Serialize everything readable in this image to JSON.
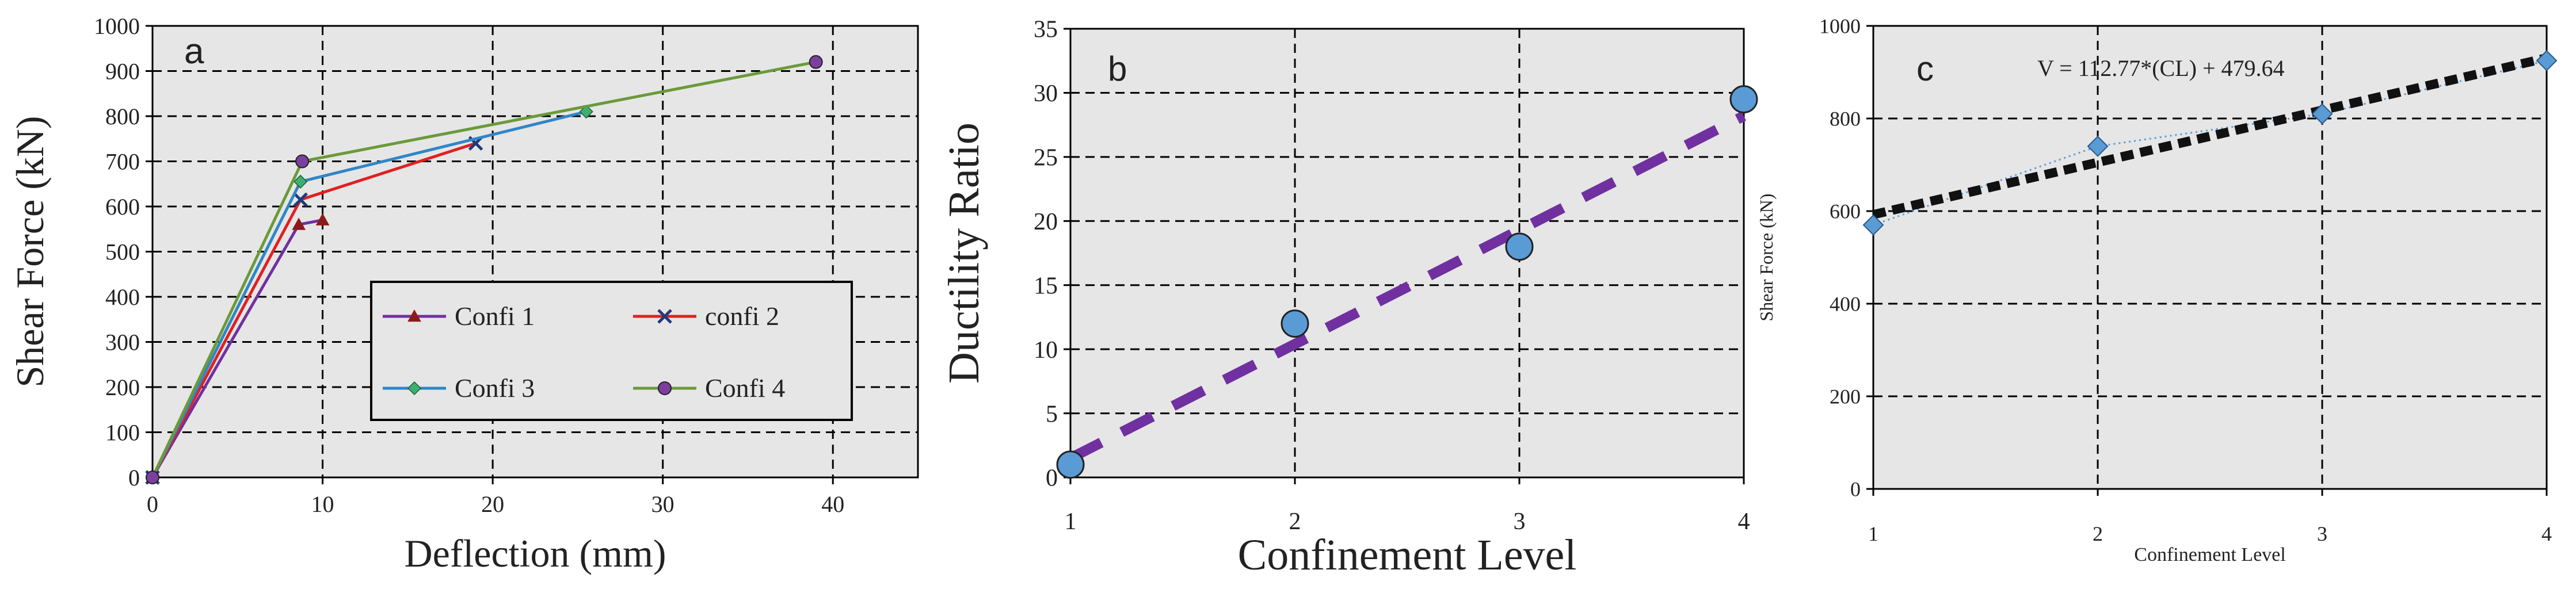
{
  "chart_data": [
    {
      "type": "line",
      "panel_label": "a",
      "xlabel": "Deflection (mm)",
      "ylabel": "Shear Force  (kN)",
      "xlim": [
        0,
        45
      ],
      "ylim": [
        0,
        1000
      ],
      "x_ticks": [
        "0",
        "10",
        "20",
        "30",
        "40"
      ],
      "y_ticks": [
        "0",
        "100",
        "200",
        "300",
        "400",
        "500",
        "600",
        "700",
        "800",
        "900",
        "1000"
      ],
      "grid": true,
      "legend_position": "bottom-right",
      "series": [
        {
          "name": "Confi 1",
          "color": "#7030A0",
          "marker_color": "#8B1A1A",
          "marker": "triangle",
          "x": [
            0,
            8.6,
            10.0
          ],
          "y": [
            0,
            560,
            570
          ]
        },
        {
          "name": "confi 2",
          "color": "#E02020",
          "marker_color": "#1F3A7A",
          "marker": "x",
          "x": [
            0,
            8.7,
            19.0
          ],
          "y": [
            0,
            615,
            740
          ]
        },
        {
          "name": "Confi 3",
          "color": "#2E86C8",
          "marker_color": "#3FAF6F",
          "marker": "diamond",
          "x": [
            0,
            8.7,
            25.5
          ],
          "y": [
            0,
            655,
            810
          ]
        },
        {
          "name": "Confi 4",
          "color": "#6A9A3A",
          "marker_color": "#7B3F9E",
          "marker": "circle",
          "x": [
            0,
            8.8,
            39.0
          ],
          "y": [
            0,
            700,
            920
          ]
        }
      ]
    },
    {
      "type": "scatter",
      "panel_label": "b",
      "xlabel": "Confinement Level",
      "ylabel": "Ductility Ratio",
      "xlim": [
        1,
        4
      ],
      "ylim": [
        0,
        35
      ],
      "x_ticks": [
        "1",
        "2",
        "3",
        "4"
      ],
      "y_ticks": [
        "0",
        "5",
        "10",
        "15",
        "20",
        "25",
        "30",
        "35"
      ],
      "grid": true,
      "points": {
        "x": [
          1,
          2,
          3,
          4
        ],
        "y": [
          1,
          12,
          18,
          29.5
        ],
        "color": "#5B9BD5"
      },
      "trendline": {
        "color": "#7030A0",
        "x": [
          1,
          4
        ],
        "y": [
          1.5,
          28.2
        ]
      }
    },
    {
      "type": "scatter",
      "panel_label": "c",
      "xlabel": "Confinement Level",
      "ylabel": "Shear Force  (kN)",
      "xlim": [
        1,
        4
      ],
      "ylim": [
        0,
        1000
      ],
      "x_ticks": [
        "1",
        "2",
        "3",
        "4"
      ],
      "y_ticks": [
        "0",
        "200",
        "400",
        "600",
        "800",
        "1000"
      ],
      "grid": true,
      "annotation": "V = 112.77*(CL) + 479.64",
      "points": {
        "x": [
          1,
          2,
          3,
          4
        ],
        "y": [
          570,
          740,
          810,
          925
        ],
        "color": "#5B9BD5"
      },
      "trendline": {
        "color": "#111111",
        "slope": 112.77,
        "intercept": 479.64,
        "x": [
          1,
          4
        ]
      }
    }
  ]
}
